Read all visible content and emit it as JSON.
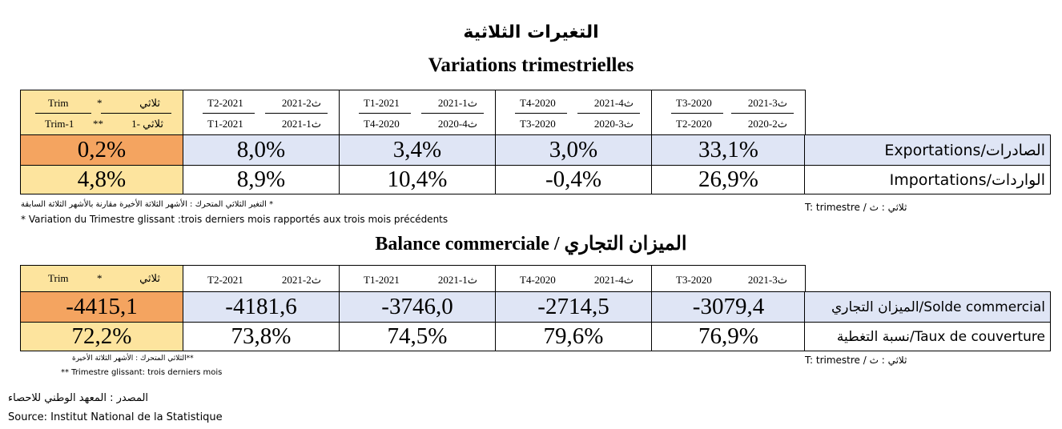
{
  "title_ar": "التغيرات الثلاثية",
  "title_fr": "Variations trimestrielles",
  "variations": {
    "header": {
      "trim": {
        "top_left": "Trim",
        "star": "*",
        "top_right": "ثلاثي",
        "bottom_left": "Trim-1",
        "double_star": "**",
        "bottom_right": "ثلاثي -1"
      },
      "cols": [
        {
          "top_left": "T2-2021",
          "top_right": "2021-2ث",
          "bottom_left": "T1-2021",
          "bottom_right": "2021-1ث"
        },
        {
          "top_left": "T1-2021",
          "top_right": "2021-1ث",
          "bottom_left": "T4-2020",
          "bottom_right": "2020-4ث"
        },
        {
          "top_left": "T4-2020",
          "top_right": "2021-4ث",
          "bottom_left": "T3-2020",
          "bottom_right": "2020-3ث"
        },
        {
          "top_left": "T3-2020",
          "top_right": "2021-3ث",
          "bottom_left": "T2-2020",
          "bottom_right": "2020-2ث"
        }
      ]
    },
    "rows": [
      {
        "trim": "0,2%",
        "values": [
          "8,0%",
          "3,4%",
          "3,0%",
          "33,1%"
        ],
        "label": "Exportations/الصادرات"
      },
      {
        "trim": "4,8%",
        "values": [
          "8,9%",
          "10,4%",
          "-0,4%",
          "26,9%"
        ],
        "label": "Importations/الواردات"
      }
    ],
    "note_ar": "التغير الثلاثي المتحرك : الأشهر الثلاثة الأخيرة مقارنة بالأشهر الثلاثة السابقة *",
    "note_fr": "* Variation du Trimestre glissant :trois derniers mois  rapportés aux trois mois précédents",
    "legend": "T: trimestre / ثلاثي : ث"
  },
  "balance_title": "Balance commerciale / الميزان التجاري",
  "balance": {
    "header": {
      "trim": {
        "left": "Trim",
        "star": "*",
        "right": "ثلاثي"
      },
      "cols": [
        {
          "left": "T2-2021",
          "right": "2021-2ث"
        },
        {
          "left": "T1-2021",
          "right": "2021-1ث"
        },
        {
          "left": "T4-2020",
          "right": "2021-4ث"
        },
        {
          "left": "T3-2020",
          "right": "2021-3ث"
        }
      ]
    },
    "rows": [
      {
        "trim": "-4415,1",
        "values": [
          "-4181,6",
          "-3746,0",
          "-2714,5",
          "-3079,4"
        ],
        "label": "الميزان التجاري/Solde commercial"
      },
      {
        "trim": "72,2%",
        "values": [
          "73,8%",
          "74,5%",
          "79,6%",
          "76,9%"
        ],
        "label": "نسبة التغطية/Taux de couverture"
      }
    ],
    "note_ar": "الثلاثي المتحرك : الأشهر الثلاثة الأخيرة**",
    "note_fr": "** Trimestre glissant: trois derniers mois",
    "legend": "T: trimestre / ثلاثي : ث"
  },
  "source_ar": "المصدر : المعهد الوطني للاحصاء",
  "source_fr": "Source: Institut National de la Statistique",
  "colors": {
    "orange": "#f4a460",
    "yellow": "#fde49e",
    "blue": "#dfe5f5"
  }
}
